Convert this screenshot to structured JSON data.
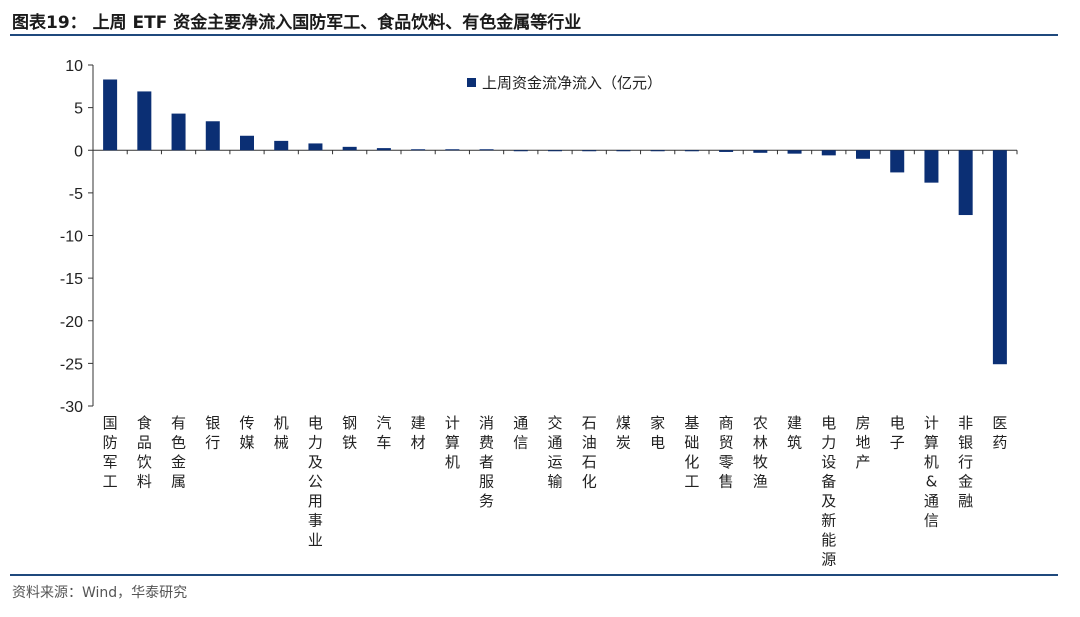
{
  "title": "图表19： 上周 ETF 资金主要净流入国防军工、食品饮料、有色金属等行业",
  "source": "资料来源：Wind，华泰研究",
  "colors": {
    "bar": "#0b2f74",
    "axis": "#333333",
    "rule": "#1f497d"
  },
  "chart_data": {
    "type": "bar",
    "legend": "上周资金流净流入（亿元）",
    "legend_position": "top-right",
    "grid": false,
    "ylim": [
      -30,
      10
    ],
    "yticks": [
      10,
      5,
      0,
      -5,
      -10,
      -15,
      -20,
      -25,
      -30
    ],
    "categories": [
      "国防军工",
      "食品饮料",
      "有色金属",
      "银行",
      "传媒",
      "机械",
      "电力及公用事业",
      "钢铁",
      "汽车",
      "建材",
      "计算机",
      "消费者服务",
      "通信",
      "交通运输",
      "石油石化",
      "煤炭",
      "家电",
      "基础化工",
      "商贸零售",
      "农林牧渔",
      "建筑",
      "电力设备及新能源",
      "房地产",
      "电子",
      "计算机&通信",
      "非银行金融",
      "医药"
    ],
    "values": [
      8.3,
      6.9,
      4.3,
      3.4,
      1.7,
      1.1,
      0.8,
      0.4,
      0.25,
      0.05,
      0.02,
      0.0,
      -0.02,
      -0.03,
      -0.05,
      -0.08,
      -0.1,
      -0.12,
      -0.2,
      -0.3,
      -0.4,
      -0.6,
      -1.0,
      -2.6,
      -3.8,
      -7.6,
      -25.1
    ]
  }
}
